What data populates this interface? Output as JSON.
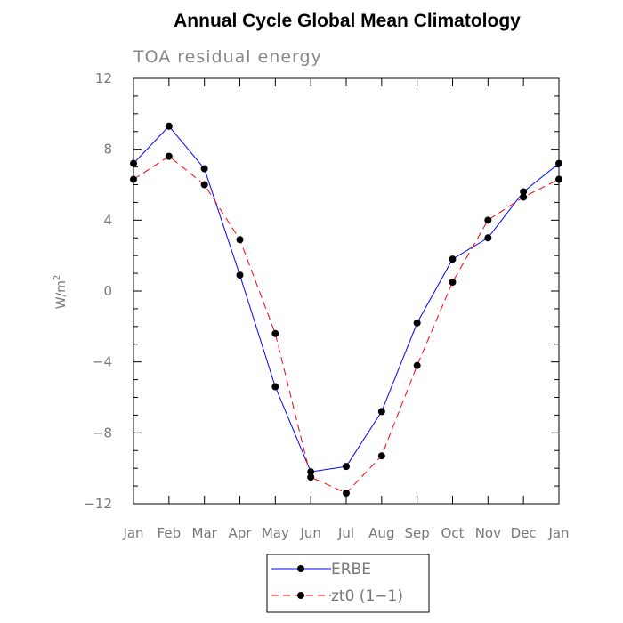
{
  "chart_data": {
    "type": "line",
    "title": "Annual Cycle Global Mean Climatology",
    "subtitle": "TOA residual energy",
    "xlabel": "",
    "ylabel": "W/m",
    "ylabel_superscript": "2",
    "categories": [
      "Jan",
      "Feb",
      "Mar",
      "Apr",
      "May",
      "Jun",
      "Jul",
      "Aug",
      "Sep",
      "Oct",
      "Nov",
      "Dec",
      "Jan"
    ],
    "ylim": [
      -12,
      12
    ],
    "yticks": [
      -12,
      -8,
      -4,
      0,
      4,
      8,
      12
    ],
    "ytick_labels": [
      "−12",
      "−8",
      "−4",
      "0",
      "4",
      "8",
      "12"
    ],
    "series": [
      {
        "name": "ERBE",
        "color": "#0000ff",
        "dashed": false,
        "values": [
          7.2,
          9.3,
          6.9,
          0.9,
          -5.4,
          -10.2,
          -9.9,
          -6.8,
          -1.8,
          1.8,
          3.0,
          5.6,
          7.2
        ]
      },
      {
        "name": "zt0 (1−1)",
        "color": "#ff0000",
        "dashed": true,
        "values": [
          6.3,
          7.6,
          6.0,
          2.9,
          -2.4,
          -10.5,
          -11.4,
          -9.3,
          -4.2,
          0.5,
          4.0,
          5.3,
          6.3
        ]
      }
    ],
    "grid": false,
    "legend_position": "bottom-center"
  }
}
